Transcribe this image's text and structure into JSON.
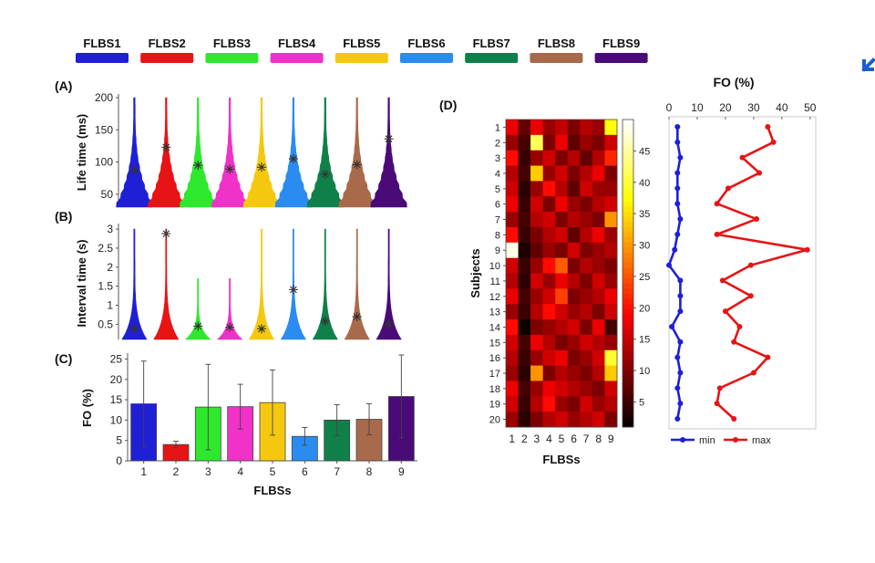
{
  "colors": {
    "FLBS1": "#1f1fd6",
    "FLBS2": "#e61414",
    "FLBS3": "#2ee82e",
    "FLBS4": "#f032c8",
    "FLBS5": "#f5c810",
    "FLBS6": "#2a8cf0",
    "FLBS7": "#10804a",
    "FLBS8": "#a86a4a",
    "FLBS9": "#4a0a78",
    "max_line": "#e61414",
    "min_line": "#1f1fd6"
  },
  "legend": [
    "FLBS1",
    "FLBS2",
    "FLBS3",
    "FLBS4",
    "FLBS5",
    "FLBS6",
    "FLBS7",
    "FLBS8",
    "FLBS9"
  ],
  "corner_icon": "arrow-down-left-icon",
  "chart_data": [
    {
      "id": "A",
      "panel_label": "(A)",
      "type": "violin",
      "ylabel": "Life time (ms)",
      "ylim": [
        30,
        200
      ],
      "yticks": [
        50,
        100,
        150,
        200
      ],
      "categories": [
        1,
        2,
        3,
        4,
        5,
        6,
        7,
        8,
        9
      ],
      "medians": [
        87,
        123,
        95,
        89,
        92,
        105,
        81,
        96,
        136
      ]
    },
    {
      "id": "B",
      "panel_label": "(B)",
      "type": "violin",
      "ylabel": "Interval time (s)",
      "ylim": [
        0.1,
        3.05
      ],
      "yticks": [
        0.5,
        1,
        1.5,
        2,
        2.5,
        3
      ],
      "ytick_labels": [
        "0.5",
        "1",
        "1.5",
        "2",
        "2.5",
        "3"
      ],
      "categories": [
        1,
        2,
        3,
        4,
        5,
        6,
        7,
        8,
        9
      ],
      "medians": [
        0.38,
        2.88,
        0.45,
        0.42,
        0.38,
        1.41,
        0.58,
        0.7,
        0.5
      ]
    },
    {
      "id": "C",
      "panel_label": "(C)",
      "type": "bar",
      "ylabel": "FO (%)",
      "xlabel": "FLBSs",
      "ylim": [
        0,
        26
      ],
      "yticks": [
        0,
        5,
        10,
        15,
        20,
        25
      ],
      "categories": [
        "1",
        "2",
        "3",
        "4",
        "5",
        "6",
        "7",
        "8",
        "9"
      ],
      "values": [
        14.0,
        4.0,
        13.2,
        13.3,
        14.3,
        6.0,
        10.0,
        10.2,
        15.8
      ],
      "errors": [
        10.5,
        0.8,
        10.5,
        5.5,
        8.0,
        2.2,
        3.8,
        3.8,
        10.2
      ]
    },
    {
      "id": "D",
      "panel_label": "(D)",
      "type": "heatmap",
      "ylabel": "Subjects",
      "xlabel": "FLBSs",
      "x": [
        "1",
        "2",
        "3",
        "4",
        "5",
        "6",
        "7",
        "8",
        "9"
      ],
      "y": [
        "1",
        "2",
        "3",
        "4",
        "5",
        "6",
        "7",
        "8",
        "9",
        "10",
        "11",
        "12",
        "13",
        "14",
        "15",
        "16",
        "17",
        "18",
        "19",
        "20"
      ],
      "colorbar_ticks": [
        5,
        10,
        15,
        20,
        25,
        30,
        35,
        40,
        45
      ],
      "colorbar_range": [
        1,
        50
      ],
      "values": [
        [
          18,
          8,
          18,
          12,
          15,
          10,
          14,
          12,
          38
        ],
        [
          12,
          6,
          42,
          10,
          18,
          8,
          12,
          10,
          16
        ],
        [
          20,
          5,
          12,
          16,
          10,
          14,
          8,
          14,
          22
        ],
        [
          14,
          6,
          34,
          12,
          16,
          10,
          14,
          18,
          10
        ],
        [
          16,
          4,
          12,
          20,
          14,
          8,
          16,
          12,
          12
        ],
        [
          18,
          5,
          16,
          10,
          18,
          12,
          10,
          14,
          16
        ],
        [
          12,
          6,
          14,
          16,
          10,
          14,
          12,
          10,
          30
        ],
        [
          20,
          5,
          10,
          14,
          16,
          8,
          14,
          18,
          12
        ],
        [
          49,
          3,
          8,
          12,
          10,
          16,
          10,
          12,
          14
        ],
        [
          16,
          5,
          12,
          20,
          26,
          10,
          14,
          12,
          10
        ],
        [
          14,
          4,
          16,
          12,
          18,
          14,
          10,
          16,
          12
        ],
        [
          18,
          6,
          12,
          16,
          24,
          10,
          12,
          14,
          18
        ],
        [
          12,
          5,
          14,
          20,
          16,
          12,
          14,
          10,
          16
        ],
        [
          20,
          2,
          10,
          12,
          14,
          16,
          10,
          18,
          6
        ],
        [
          16,
          6,
          18,
          14,
          10,
          12,
          16,
          14,
          12
        ],
        [
          14,
          5,
          12,
          16,
          18,
          10,
          12,
          16,
          40
        ],
        [
          12,
          4,
          30,
          10,
          14,
          12,
          10,
          14,
          34
        ],
        [
          18,
          6,
          12,
          18,
          16,
          14,
          12,
          10,
          16
        ],
        [
          16,
          5,
          14,
          20,
          12,
          10,
          16,
          12,
          14
        ],
        [
          12,
          4,
          10,
          14,
          16,
          12,
          14,
          16,
          10
        ]
      ]
    },
    {
      "id": "E",
      "type": "line",
      "title": "FO (%)",
      "xlim": [
        0,
        52
      ],
      "xticks": [
        0,
        10,
        20,
        30,
        40,
        50
      ],
      "subjects": [
        "1",
        "2",
        "3",
        "4",
        "5",
        "6",
        "7",
        "8",
        "9",
        "10",
        "11",
        "12",
        "13",
        "14",
        "15",
        "16",
        "17",
        "18",
        "19",
        "20"
      ],
      "series": [
        {
          "name": "min",
          "values": [
            3,
            3,
            4,
            3,
            3,
            3,
            4,
            3,
            2,
            0,
            4,
            4,
            4,
            1,
            4,
            3,
            4,
            3,
            4,
            3
          ]
        },
        {
          "name": "max",
          "values": [
            35,
            37,
            26,
            32,
            21,
            17,
            31,
            17,
            49,
            29,
            19,
            29,
            20,
            25,
            23,
            35,
            30,
            18,
            17,
            23
          ]
        }
      ]
    }
  ]
}
